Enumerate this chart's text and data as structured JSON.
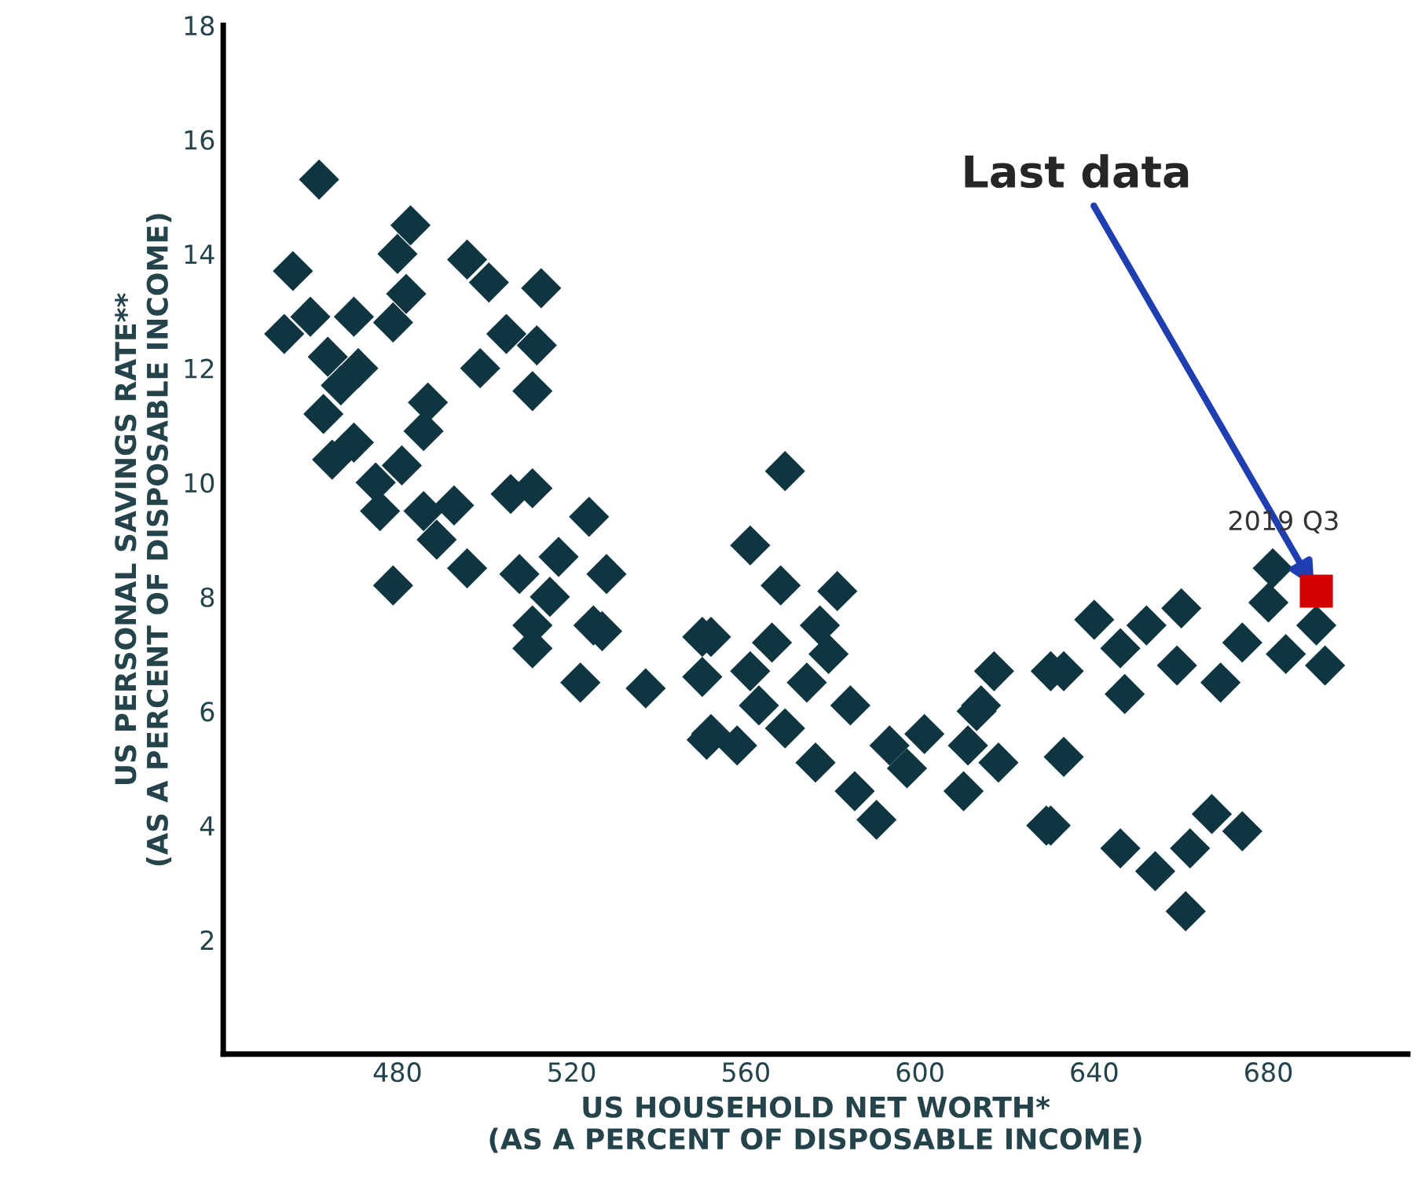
{
  "chart_data": {
    "type": "scatter",
    "xlabel": "US HOUSEHOLD NET WORTH*\n(AS A PERCENT OF DISPOSABLE INCOME)",
    "ylabel": "US PERSONAL SAVINGS RATE**\n(AS A PERCENT OF DISPOSABLE INCOME)",
    "xlim": [
      440,
      712
    ],
    "ylim": [
      0,
      18
    ],
    "xticks": [
      480,
      520,
      560,
      600,
      640,
      680
    ],
    "yticks": [
      2,
      4,
      6,
      8,
      10,
      12,
      14,
      16,
      18
    ],
    "marker": "diamond",
    "grid": false,
    "legend": false,
    "series": [
      {
        "color": "#0f3640",
        "x": [
          462,
          483,
          480,
          456,
          496,
          501,
          513,
          482,
          454,
          460,
          470,
          479,
          505,
          512,
          499,
          464,
          467,
          511,
          463,
          487,
          470,
          486,
          465,
          475,
          506,
          511,
          524,
          476,
          486,
          493,
          489,
          479,
          496,
          508,
          517,
          528,
          515,
          525,
          511,
          481,
          471,
          537,
          522,
          511,
          527,
          550,
          551,
          569,
          561,
          568,
          581,
          577,
          552,
          566,
          579,
          550,
          561,
          574,
          584,
          552,
          563,
          569,
          558,
          576,
          585,
          590,
          593,
          601,
          597,
          611,
          614,
          618,
          610,
          617,
          630,
          629,
          681,
          680,
          691,
          693,
          684,
          674,
          669,
          659,
          660,
          652,
          640,
          646,
          633,
          647,
          613,
          633,
          630,
          646,
          654,
          661,
          667,
          674,
          662
        ],
        "values": [
          15.3,
          14.5,
          14.0,
          13.7,
          13.9,
          13.5,
          13.4,
          13.3,
          12.6,
          12.9,
          12.9,
          12.8,
          12.6,
          12.4,
          12.0,
          12.2,
          11.7,
          11.6,
          11.2,
          11.4,
          10.7,
          10.9,
          10.4,
          10.0,
          9.8,
          9.9,
          9.4,
          9.5,
          9.5,
          9.6,
          9.0,
          8.2,
          8.5,
          8.4,
          8.7,
          8.4,
          8.0,
          7.5,
          7.5,
          10.3,
          12.0,
          6.4,
          6.5,
          7.1,
          7.4,
          7.3,
          5.5,
          10.2,
          8.9,
          8.2,
          8.1,
          7.5,
          7.3,
          7.2,
          7.0,
          6.6,
          6.7,
          6.5,
          6.1,
          5.6,
          6.1,
          5.7,
          5.4,
          5.1,
          4.6,
          4.1,
          5.4,
          5.6,
          5.0,
          5.4,
          6.1,
          5.1,
          4.6,
          6.7,
          6.7,
          4.0,
          8.5,
          7.9,
          7.5,
          6.8,
          7.0,
          7.2,
          6.5,
          6.8,
          7.8,
          7.5,
          7.6,
          7.1,
          6.7,
          6.3,
          6.0,
          5.2,
          4.0,
          3.6,
          3.2,
          2.5,
          4.2,
          3.9,
          3.6
        ]
      },
      {
        "color": "#d40000",
        "marker": "square",
        "x": [
          691
        ],
        "values": [
          8.1
        ]
      }
    ],
    "annotations": [
      {
        "text": "Last data",
        "x": 691,
        "y": 8.1
      },
      {
        "text": "2019 Q3",
        "x": 691,
        "y": 8.1
      }
    ]
  }
}
